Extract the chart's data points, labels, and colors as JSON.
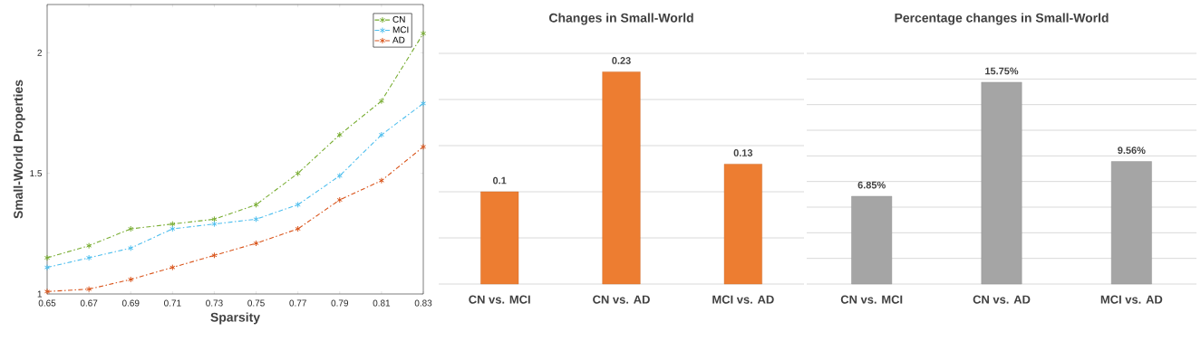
{
  "chart_data": [
    {
      "type": "line",
      "xlabel": "Sparsity",
      "ylabel": "Small-World Properties",
      "x": [
        0.65,
        0.67,
        0.69,
        0.71,
        0.73,
        0.75,
        0.77,
        0.79,
        0.81,
        0.83
      ],
      "series": [
        {
          "name": "CN",
          "color": "#77ac30",
          "values": [
            1.15,
            1.2,
            1.27,
            1.29,
            1.31,
            1.37,
            1.5,
            1.66,
            1.8,
            2.08
          ]
        },
        {
          "name": "MCI",
          "color": "#4dbeee",
          "values": [
            1.11,
            1.15,
            1.19,
            1.27,
            1.29,
            1.31,
            1.37,
            1.49,
            1.66,
            1.79
          ]
        },
        {
          "name": "AD",
          "color": "#d95319",
          "values": [
            1.01,
            1.02,
            1.06,
            1.11,
            1.16,
            1.21,
            1.27,
            1.39,
            1.47,
            1.61
          ]
        }
      ],
      "xlim": [
        0.65,
        0.83
      ],
      "ylim": [
        1,
        2.2
      ],
      "xticks": [
        0.65,
        0.67,
        0.69,
        0.71,
        0.73,
        0.75,
        0.77,
        0.79,
        0.81,
        0.83
      ],
      "yticks": [
        1,
        1.5,
        2
      ],
      "legend": "top right",
      "marker": "cross",
      "line_style": "dashed",
      "grid": false
    },
    {
      "type": "bar",
      "title": "Changes in Small-World",
      "categories": [
        "CN vs. MCI",
        "CN vs. AD",
        "MCI vs. AD"
      ],
      "values": [
        0.1,
        0.23,
        0.13
      ],
      "color": "#ed7d31",
      "ylim": [
        0,
        0.25
      ],
      "yticks": [
        0,
        0.05,
        0.1,
        0.15,
        0.2,
        0.25
      ],
      "tick_labels": "x",
      "grid": "y",
      "data_labels": true
    },
    {
      "type": "bar",
      "title": "Percentage changes in Small-World",
      "categories": [
        "CN vs. MCI",
        "CN vs. AD",
        "MCI vs. AD"
      ],
      "values": [
        6.85,
        15.75,
        9.56
      ],
      "value_labels": [
        "6.85%",
        "15.75%",
        "9.56%"
      ],
      "color": "#a5a5a5",
      "ylim": [
        0,
        18
      ],
      "yticks": [
        0,
        2,
        4,
        6,
        8,
        10,
        12,
        14,
        16,
        18
      ],
      "tick_labels": "x",
      "grid": "y"
    }
  ]
}
